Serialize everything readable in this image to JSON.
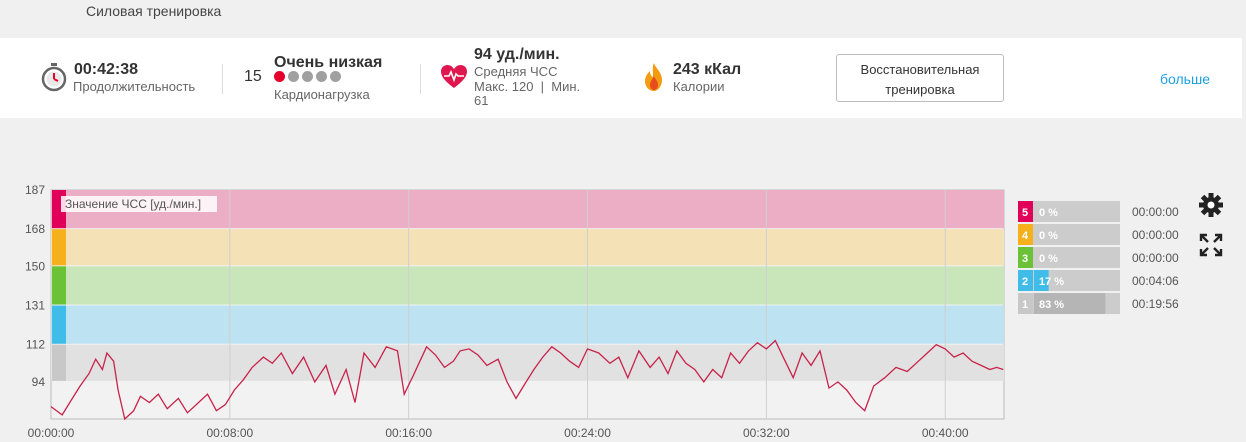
{
  "page_title": "Силовая тренировка",
  "summary": {
    "duration": {
      "value": "00:42:38",
      "label": "Продолжительность"
    },
    "cardio": {
      "score": "15",
      "level": "Очень низкая",
      "label": "Кардионагрузка",
      "dots_active": 1,
      "dots_total": 5
    },
    "heart_rate": {
      "avg": "94 уд./мин.",
      "label": "Средняя ЧСС",
      "max_min": "Макс. 120  |  Мин.",
      "min_value": "61"
    },
    "calories": {
      "value": "243 кКал",
      "label": "Калории"
    },
    "training_type_button": "Восстановительная тренировка",
    "more_link": "больше"
  },
  "colors": {
    "zone5": "#e0005a",
    "zone4": "#f5b01b",
    "zone3": "#6cc237",
    "zone2": "#3fbde8",
    "zone1": "#c8c8c8",
    "line": "#c8234a",
    "link": "#1ea0e0"
  },
  "icons": [
    "stopwatch-icon",
    "heart-icon",
    "flame-icon",
    "gear-icon",
    "expand-icon"
  ],
  "chart_data": {
    "type": "line",
    "legend_label": "Значение ЧСС [уд./мин.]",
    "y_ticks": [
      187,
      168,
      150,
      131,
      112,
      94
    ],
    "ylim": [
      76,
      187
    ],
    "x_ticks": [
      "00:00:00",
      "00:08:00",
      "00:16:00",
      "00:24:00",
      "00:32:00",
      "00:40:00"
    ],
    "xlim_min": [
      0,
      42.63
    ],
    "zones": [
      {
        "id": "5",
        "low": 168,
        "high": 187,
        "percent": "0 %",
        "fraction": 0,
        "time": "00:00:00"
      },
      {
        "id": "4",
        "low": 150,
        "high": 168,
        "percent": "0 %",
        "fraction": 0,
        "time": "00:00:00"
      },
      {
        "id": "3",
        "low": 131,
        "high": 150,
        "percent": "0 %",
        "fraction": 0,
        "time": "00:00:00"
      },
      {
        "id": "2",
        "low": 112,
        "high": 131,
        "percent": "17 %",
        "fraction": 0.17,
        "time": "00:04:06"
      },
      {
        "id": "1",
        "low": 94,
        "high": 112,
        "percent": "83 %",
        "fraction": 0.83,
        "time": "00:19:56"
      }
    ],
    "series": [
      {
        "x": [
          0,
          0.5,
          0.9,
          1.3,
          1.7,
          2.0,
          2.3,
          2.5,
          2.8,
          3.0,
          3.3,
          3.7,
          4.0,
          4.4,
          4.8,
          5.2,
          5.7,
          6.1,
          6.5,
          7.0,
          7.4,
          7.8,
          8.2,
          8.6,
          9.0,
          9.5,
          9.9,
          10.3,
          10.8,
          11.3,
          11.8,
          12.3,
          12.7,
          13.2,
          13.6,
          14.0,
          14.5,
          15.0,
          15.5,
          15.8,
          16.2,
          16.5,
          16.8,
          17.2,
          17.6,
          18.0,
          18.3,
          18.7,
          19.1,
          19.5,
          20.0,
          20.4,
          20.8,
          21.2,
          21.6,
          22.0,
          22.4,
          22.8,
          23.2,
          23.6,
          24.0,
          24.5,
          25.0,
          25.4,
          25.8,
          26.3,
          26.8,
          27.2,
          27.6,
          28.0,
          28.4,
          28.8,
          29.2,
          29.6,
          30.0,
          30.4,
          30.8,
          31.2,
          31.6,
          32.0,
          32.4,
          32.8,
          33.2,
          33.6,
          34.0,
          34.4,
          34.8,
          35.2,
          35.6,
          36.0,
          36.4,
          36.8,
          37.3,
          37.8,
          38.3,
          38.8,
          39.2,
          39.6,
          40.0,
          40.4,
          40.8,
          41.2,
          41.6,
          42.0,
          42.3,
          42.6
        ],
        "y": [
          82,
          78,
          85,
          92,
          98,
          105,
          100,
          108,
          104,
          90,
          76,
          80,
          87,
          84,
          88,
          81,
          86,
          79,
          83,
          88,
          80,
          83,
          90,
          95,
          101,
          106,
          103,
          108,
          98,
          106,
          94,
          102,
          88,
          100,
          84,
          108,
          101,
          111,
          109,
          88,
          97,
          104,
          111,
          107,
          101,
          104,
          109,
          110,
          107,
          102,
          105,
          94,
          86,
          93,
          100,
          106,
          111,
          108,
          104,
          101,
          110,
          108,
          103,
          106,
          96,
          109,
          101,
          106,
          98,
          109,
          103,
          100,
          94,
          100,
          96,
          108,
          103,
          109,
          113,
          110,
          114,
          105,
          96,
          108,
          102,
          109,
          91,
          94,
          90,
          84,
          80,
          92,
          96,
          101,
          99,
          104,
          108,
          112,
          110,
          106,
          108,
          104,
          102,
          100,
          101,
          100
        ]
      }
    ]
  }
}
